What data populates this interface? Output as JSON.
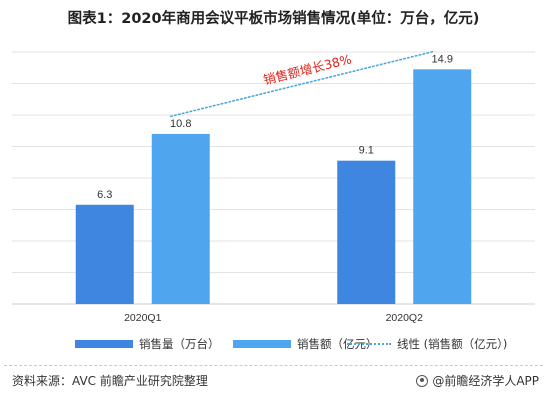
{
  "chart_data": {
    "type": "bar",
    "title": "图表1：2020年商用会议平板市场销售情况(单位：万台，亿元)",
    "categories": [
      "2020Q1",
      "2020Q2"
    ],
    "series": [
      {
        "name": "销售量（万台）",
        "values": [
          6.3,
          9.1
        ],
        "color": "#3f86e0"
      },
      {
        "name": "销售额（亿元）",
        "values": [
          10.8,
          14.9
        ],
        "color": "#4fa6ee"
      }
    ],
    "trendline": {
      "name": "线性 (销售额（亿元）)",
      "annotation": "销售额增长38%",
      "color": "#4aa8dc",
      "annotation_color": "#e0231c"
    },
    "ylim": [
      0,
      16
    ],
    "grid": true,
    "legend_position": "bottom"
  },
  "footer": {
    "source": "资料来源：AVC 前瞻产业研究院整理",
    "brand": "@前瞻经济学人APP"
  }
}
